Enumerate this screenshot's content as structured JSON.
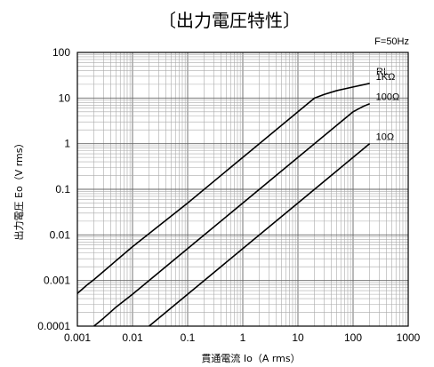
{
  "chart_data": {
    "type": "line",
    "title": "〔出力電圧特性〕",
    "frequency_note": "F=50Hz",
    "xlabel": "貫通電流 Io（A rms）",
    "ylabel": "出力電圧 Eo（V rms）",
    "x_scale": "log",
    "y_scale": "log",
    "xlim": [
      0.001,
      1000
    ],
    "ylim": [
      0.0001,
      100
    ],
    "x_ticks": [
      "0.001",
      "0.01",
      "0.1",
      "1",
      "10",
      "100",
      "1000"
    ],
    "y_ticks": [
      "0.0001",
      "0.001",
      "0.01",
      "0.1",
      "1",
      "10",
      "100"
    ],
    "grid": true,
    "legend_header": "RL",
    "series": [
      {
        "name": "1KΩ",
        "x": [
          0.001,
          0.0015,
          0.002,
          0.005,
          0.01,
          0.1,
          1,
          10,
          15,
          20,
          30,
          50,
          100,
          200
        ],
        "y": [
          0.00052,
          0.0008,
          0.00105,
          0.0027,
          0.0055,
          0.05,
          0.5,
          5,
          7.5,
          10,
          12,
          14.5,
          17.5,
          21
        ]
      },
      {
        "name": "100Ω",
        "x": [
          0.002,
          0.003,
          0.005,
          0.01,
          0.1,
          1,
          10,
          50,
          100,
          150,
          200
        ],
        "y": [
          0.0001,
          0.00015,
          0.00026,
          0.0005,
          0.005,
          0.05,
          0.5,
          2.5,
          5,
          6.5,
          7.5
        ]
      },
      {
        "name": "10Ω",
        "x": [
          0.02,
          0.1,
          1,
          10,
          100,
          200
        ],
        "y": [
          0.0001,
          0.0005,
          0.005,
          0.05,
          0.5,
          1
        ]
      }
    ]
  }
}
